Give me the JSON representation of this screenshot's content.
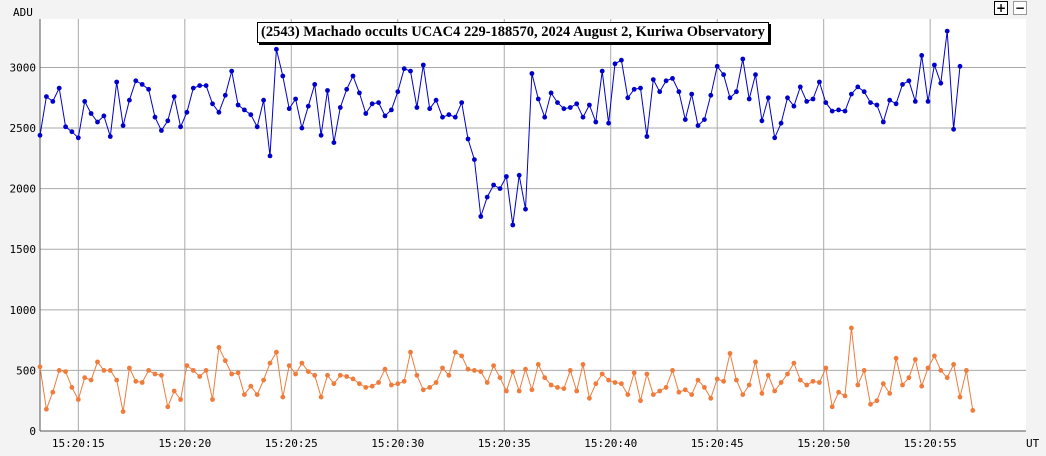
{
  "chart_data": {
    "type": "line",
    "title": "(2543) Machado occults UCAC4 229-188570, 2024 August 2, Kuriwa Observatory",
    "ylabel": "ADU",
    "xlabel": "UT",
    "ylim": [
      0,
      3400
    ],
    "yticks": [
      0,
      500,
      1000,
      1500,
      2000,
      2500,
      3000
    ],
    "xticks": [
      "15:20:15",
      "15:20:20",
      "15:20:25",
      "15:20:30",
      "15:20:35",
      "15:20:40",
      "15:20:45",
      "15:20:50",
      "15:20:55"
    ],
    "x_start_seconds": 13.2,
    "x_step_seconds": 0.3,
    "grid": true,
    "series": [
      {
        "color": "#0000cc",
        "values": [
          2440,
          2760,
          2720,
          2830,
          2510,
          2470,
          2420,
          2720,
          2620,
          2550,
          2600,
          2430,
          2880,
          2520,
          2730,
          2890,
          2860,
          2820,
          2590,
          2480,
          2560,
          2760,
          2510,
          2630,
          2830,
          2850,
          2850,
          2700,
          2630,
          2770,
          2970,
          2690,
          2650,
          2610,
          2510,
          2730,
          2270,
          3150,
          2930,
          2660,
          2740,
          2500,
          2680,
          2860,
          2440,
          2810,
          2380,
          2670,
          2820,
          2930,
          2790,
          2620,
          2700,
          2710,
          2600,
          2650,
          2800,
          2990,
          2970,
          2670,
          3020,
          2660,
          2730,
          2590,
          2610,
          2590,
          2710,
          2410,
          2240,
          1770,
          1930,
          2030,
          2000,
          2100,
          1700,
          2110,
          1830,
          2950,
          2740,
          2590,
          2790,
          2710,
          2660,
          2670,
          2700,
          2590,
          2690,
          2550,
          2970,
          2540,
          3030,
          3060,
          2750,
          2820,
          2830,
          2430,
          2900,
          2800,
          2890,
          2910,
          2800,
          2570,
          2780,
          2520,
          2570,
          2770,
          3010,
          2940,
          2750,
          2800,
          3070,
          2740,
          2940,
          2560,
          2750,
          2420,
          2540,
          2750,
          2680,
          2840,
          2720,
          2740,
          2880,
          2710,
          2640,
          2650,
          2640,
          2780,
          2840,
          2800,
          2710,
          2690,
          2550,
          2730,
          2700,
          2860,
          2890,
          2720,
          3100,
          2720,
          3020,
          2870,
          3300,
          2490,
          3010
        ]
      },
      {
        "color": "#f07c3c",
        "values": [
          530,
          180,
          320,
          500,
          490,
          360,
          260,
          440,
          420,
          570,
          500,
          500,
          420,
          160,
          520,
          410,
          400,
          500,
          470,
          460,
          200,
          330,
          260,
          540,
          500,
          450,
          500,
          260,
          690,
          580,
          470,
          480,
          300,
          370,
          300,
          420,
          560,
          650,
          280,
          540,
          470,
          560,
          490,
          460,
          280,
          460,
          390,
          460,
          450,
          430,
          390,
          360,
          370,
          400,
          510,
          380,
          390,
          410,
          650,
          460,
          340,
          360,
          400,
          520,
          460,
          650,
          620,
          510,
          500,
          490,
          400,
          540,
          440,
          330,
          490,
          330,
          510,
          340,
          550,
          440,
          380,
          360,
          350,
          500,
          330,
          550,
          270,
          390,
          470,
          420,
          400,
          390,
          300,
          480,
          250,
          470,
          300,
          330,
          360,
          500,
          320,
          340,
          300,
          420,
          360,
          270,
          430,
          410,
          640,
          420,
          300,
          380,
          570,
          310,
          460,
          330,
          400,
          470,
          560,
          420,
          380,
          410,
          400,
          520,
          200,
          320,
          290,
          850,
          380,
          500,
          220,
          250,
          390,
          310,
          600,
          380,
          440,
          590,
          370,
          520,
          620,
          500,
          440,
          550,
          280,
          500,
          170
        ]
      }
    ]
  },
  "controls": {
    "zoom_in": "+",
    "zoom_out": "−"
  }
}
